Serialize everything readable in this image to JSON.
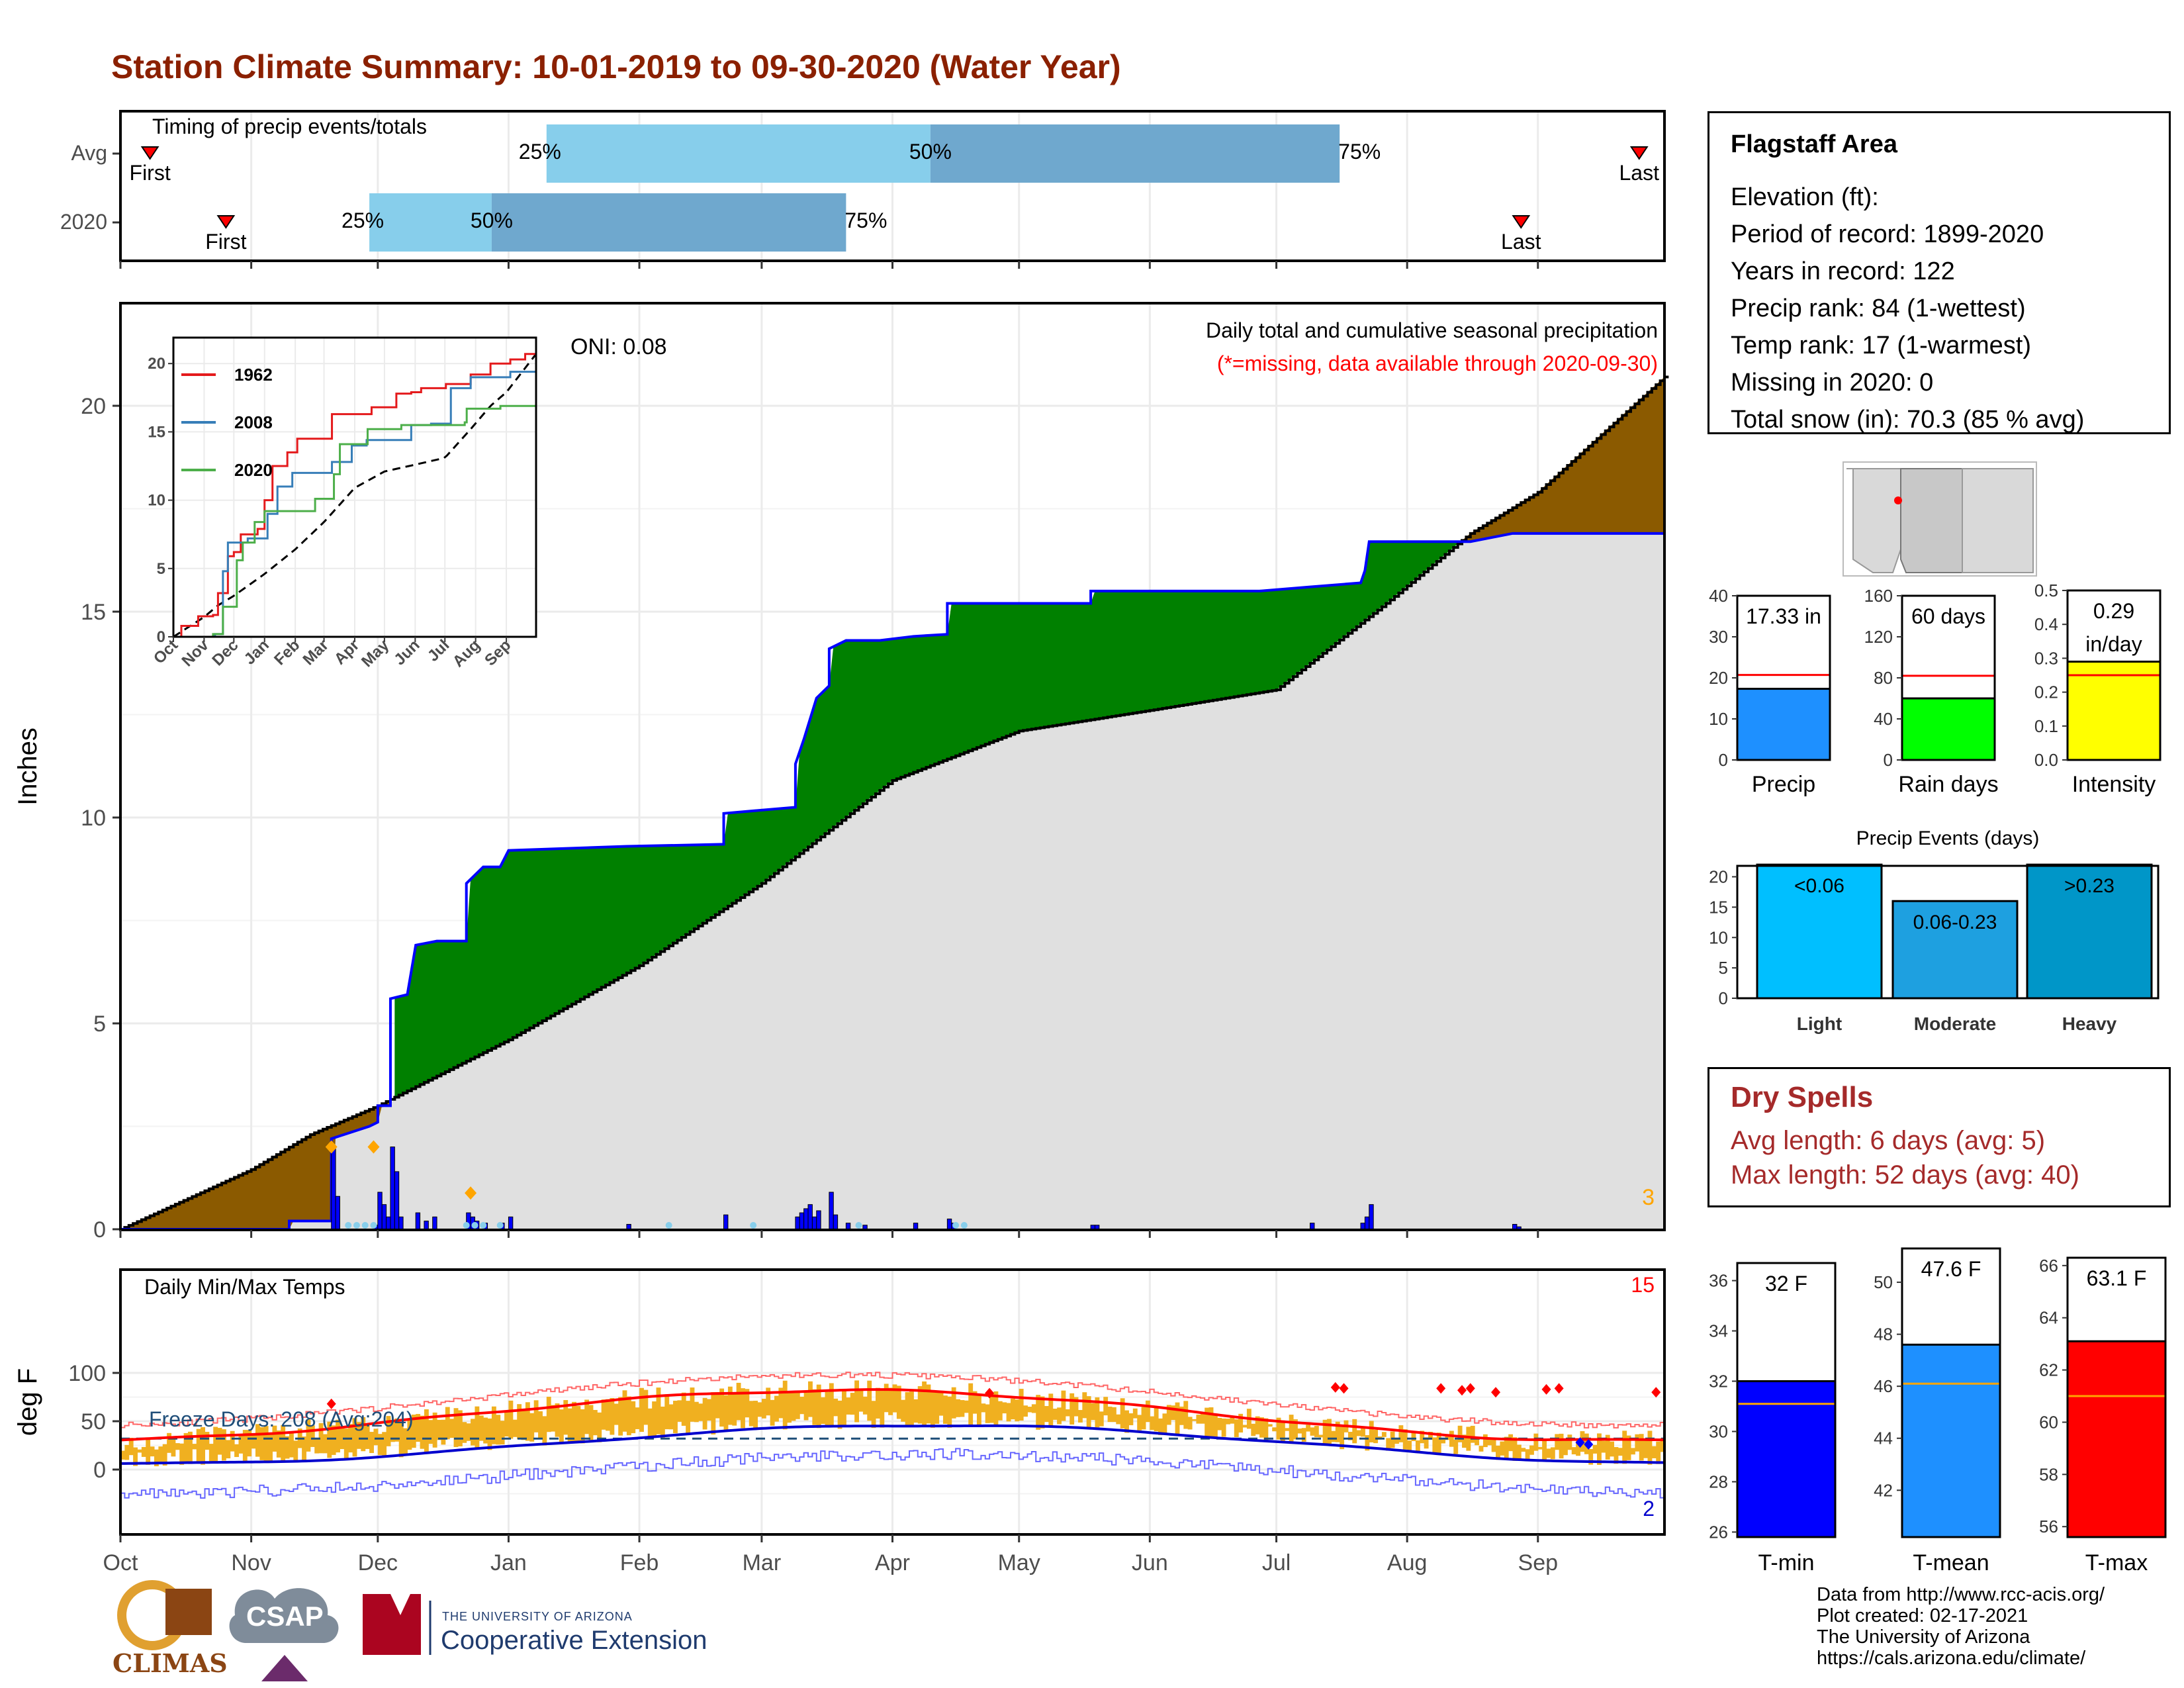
{
  "title": "Station Climate Summary: 10-01-2019 to 09-30-2020 (Water Year)",
  "colors": {
    "title": "#8b2000",
    "quartile_light": "#87ceeb",
    "quartile_dark": "#6fa8ce",
    "cum_gray": "#e0e0e0",
    "surplus_green": "#008000",
    "deficit_brown": "#8b5a00",
    "precip_bars": "#0000ff",
    "temp_bars": "#f0b020",
    "avg_max": "#ff0000",
    "avg_min": "#0000cd"
  },
  "timing_panel": {
    "title": "Timing of precip events/totals",
    "rows": [
      {
        "label": "Avg",
        "first_label": "First",
        "last_label": "Last",
        "first_date": "2019-10-08",
        "last_date": "2020-09-25",
        "q25": "2020-01-10",
        "q50": "2020-04-10",
        "q75": "2020-07-16",
        "q25_label": "25%",
        "q50_label": "50%",
        "q75_label": "75%"
      },
      {
        "label": "2020",
        "first_label": "First",
        "last_label": "Last",
        "first_date": "2019-10-26",
        "last_date": "2020-08-28",
        "q25": "2019-11-29",
        "q50": "2019-12-28",
        "q75": "2020-03-21",
        "q25_label": "25%",
        "q50_label": "50%",
        "q75_label": "75%"
      }
    ]
  },
  "precip_panel": {
    "ylabel": "Inches",
    "y_ticks": [
      "0",
      "5",
      "10",
      "15",
      "20"
    ],
    "oni_label": "ONI: 0.08",
    "subtitle": "Daily total and cumulative seasonal precipitation",
    "missing_note": "(*=missing, data available through 2020-09-30)",
    "corner_count": "3"
  },
  "inset_panel": {
    "y_ticks": [
      "0",
      "5",
      "10",
      "15",
      "20"
    ],
    "x_ticks": [
      "Oct",
      "Nov",
      "Dec",
      "Jan",
      "Feb",
      "Mar",
      "Apr",
      "May",
      "Jun",
      "Jul",
      "Aug",
      "Sep"
    ],
    "legend": [
      {
        "name": "1962",
        "color": "#e41a1c"
      },
      {
        "name": "2008",
        "color": "#377eb8"
      },
      {
        "name": "2020",
        "color": "#4daf4a"
      }
    ]
  },
  "temp_panel": {
    "ylabel": "deg F",
    "title": "Daily Min/Max Temps",
    "freeze_label": "Freeze Days: 208 (Avg:204)",
    "y_ticks": [
      "0",
      "50",
      "100"
    ],
    "record_high_count": "15",
    "record_low_count": "2"
  },
  "x_months": [
    "Oct",
    "Nov",
    "Dec",
    "Jan",
    "Feb",
    "Mar",
    "Apr",
    "May",
    "Jun",
    "Jul",
    "Aug",
    "Sep"
  ],
  "station_info": {
    "name": "Flagstaff Area",
    "lines": [
      "Elevation (ft):",
      "Period of record: 1899-2020",
      "Years in record: 122",
      "Precip rank: 84 (1-wettest)",
      "Temp rank: 17 (1-warmest)",
      "Missing in 2020: 0",
      "Total snow (in): 70.3 (85 % avg)"
    ]
  },
  "summary_bars": [
    {
      "label": "Precip",
      "value_label": "17.33 in",
      "value": 17.33,
      "avg": 20.7,
      "ymax": 40,
      "ticks": [
        "0",
        "10",
        "20",
        "30",
        "40"
      ],
      "color": "#1e90ff"
    },
    {
      "label": "Rain days",
      "value_label": "60 days",
      "value": 60,
      "avg": 82,
      "ymax": 160,
      "ticks": [
        "0",
        "40",
        "80",
        "120",
        "160"
      ],
      "color": "#00ff00"
    },
    {
      "label": "Intensity",
      "value_label": "0.29",
      "value_label2": "in/day",
      "value": 0.29,
      "avg": 0.25,
      "ymax": 0.5,
      "ticks": [
        "0.0",
        "0.1",
        "0.2",
        "0.3",
        "0.4",
        "0.5"
      ],
      "color": "#ffff00"
    }
  ],
  "events_chart": {
    "title": "Precip Events (days)",
    "ticks": [
      "0",
      "5",
      "10",
      "15",
      "20"
    ],
    "bars": [
      {
        "category": "Light",
        "label": "<0.06",
        "value": 22,
        "color": "#00bfff"
      },
      {
        "category": "Moderate",
        "label": "0.06-0.23",
        "value": 16,
        "color": "#1ea0e0"
      },
      {
        "category": "Heavy",
        "label": ">0.23",
        "value": 22,
        "color": "#0096c8"
      }
    ]
  },
  "dry_spells": {
    "title": "Dry Spells",
    "avg_line": "Avg length: 6 days (avg: 5)",
    "max_line": "Max length: 52 days (avg: 40)"
  },
  "temp_bars": [
    {
      "label": "T-min",
      "value_label": "32 F",
      "value": 32.0,
      "avg": 31.1,
      "ymin": 25.8,
      "ymax": 36.7,
      "ticks": [
        "26",
        "28",
        "30",
        "32",
        "34",
        "36"
      ],
      "color": "#0000ff"
    },
    {
      "label": "T-mean",
      "value_label": "47.6 F",
      "value": 47.6,
      "avg": 46.1,
      "ymin": 40.2,
      "ymax": 51.3,
      "ticks": [
        "42",
        "44",
        "46",
        "48",
        "50"
      ],
      "color": "#1e90ff"
    },
    {
      "label": "T-max",
      "value_label": "63.1 F",
      "value": 63.1,
      "avg": 61.0,
      "ymin": 55.6,
      "ymax": 66.3,
      "ticks": [
        "56",
        "58",
        "60",
        "62",
        "64",
        "66"
      ],
      "color": "#ff0000"
    }
  ],
  "credits": [
    "Data from http://www.rcc-acis.org/",
    "Plot created: 02-17-2021",
    "The University of Arizona",
    "https://cals.arizona.edu/climate/"
  ],
  "logos": {
    "climas": "CLIMAS",
    "csap": "CSAP",
    "ua_small": "THE UNIVERSITY OF ARIZONA",
    "ua_big": "Cooperative Extension"
  }
}
